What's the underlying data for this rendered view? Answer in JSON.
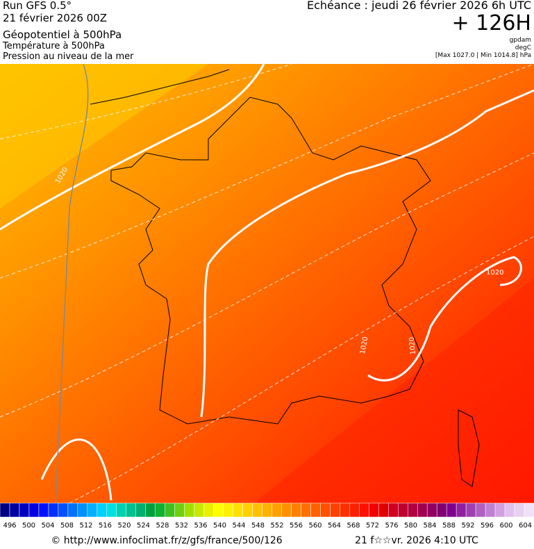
{
  "header": {
    "left": [
      "Run GFS 0.5°",
      "21 février 2026 00Z",
      "Géopotentiel à 500hPa",
      "Température à 500hPa",
      "Pression au niveau de la mer"
    ],
    "echeance": "Echéance : jeudi 26 février 2026 6h UTC",
    "lead": "+ 126H",
    "unit1": "gpdam",
    "unit2": "degC",
    "range": "[Max 1027.0 | Min 1014.8] hPa"
  },
  "map": {
    "contour_labels": [
      "1020",
      "1020",
      "1020",
      "1020"
    ]
  },
  "colorbar": {
    "labels": [
      "496",
      "500",
      "504",
      "508",
      "512",
      "516",
      "520",
      "524",
      "528",
      "532",
      "536",
      "540",
      "544",
      "548",
      "552",
      "556",
      "560",
      "564",
      "568",
      "572",
      "576",
      "580",
      "584",
      "588",
      "592",
      "596",
      "600",
      "604"
    ],
    "colors": [
      "#000080",
      "#0000a0",
      "#0000c0",
      "#0000e0",
      "#0010ff",
      "#0030ff",
      "#0050ff",
      "#0070ff",
      "#0090ff",
      "#00b0ff",
      "#00d0ff",
      "#00e0e0",
      "#00d0b0",
      "#00c090",
      "#00b070",
      "#00a040",
      "#10b030",
      "#40c020",
      "#70d010",
      "#a0e000",
      "#c8e800",
      "#e8f000",
      "#ffff00",
      "#fff000",
      "#ffe000",
      "#ffd000",
      "#ffc000",
      "#ffb000",
      "#ffa000",
      "#ff9000",
      "#ff8000",
      "#ff7000",
      "#ff6000",
      "#ff5000",
      "#ff4000",
      "#ff3000",
      "#ff2000",
      "#ff1000",
      "#f00000",
      "#e00000",
      "#d00020",
      "#c00030",
      "#b00040",
      "#a00050",
      "#900060",
      "#800070",
      "#800090",
      "#9020a0",
      "#a040b0",
      "#b060c0",
      "#c080d0",
      "#d0a0e0",
      "#e0c0f0",
      "#e8d0f0",
      "#f0e0f8"
    ]
  },
  "footer": {
    "url": "© http://www.infoclimat.fr/z/gfs/france/500/126",
    "date": "21 f☆☆vr. 2026  4:10 UTC"
  }
}
